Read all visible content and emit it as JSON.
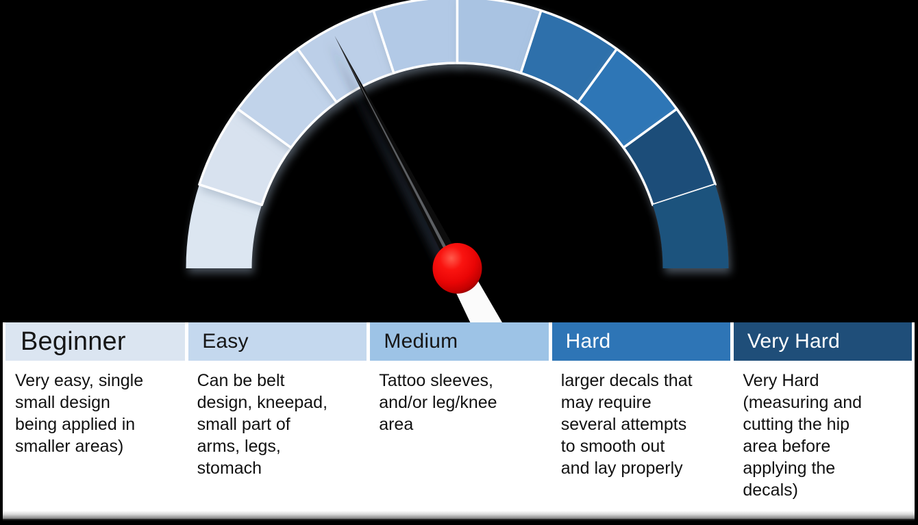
{
  "background_color": "#000000",
  "chart_data": [
    {
      "type": "gauge",
      "title": "",
      "arc_span_deg": 180,
      "levels": [
        "Beginner",
        "Easy",
        "Medium",
        "Hard",
        "Very Hard"
      ],
      "segments_per_level": 2,
      "segment_colors": [
        "#dce6f1",
        "#d8e2ef",
        "#c1d3ea",
        "#bccfe8",
        "#b2c9e6",
        "#a9c3e2",
        "#2d6fab",
        "#2e76b6",
        "#1f4e79",
        "#1e527d"
      ],
      "separator_color": "#ffffff",
      "needle_angle_deg": 117.8,
      "needle_points_to_level": "Easy",
      "needle_color": "#101010",
      "needle_tail_color": "#fbfbfb",
      "hub_color": "#f40404"
    },
    {
      "type": "table",
      "columns": [
        {
          "header": "Beginner",
          "header_bg": "#dbe5f1",
          "header_text_color": "#161616",
          "body": "Very easy, single\nsmall design\nbeing applied in\nsmaller areas)"
        },
        {
          "header": "Easy",
          "header_bg": "#c4d8ee",
          "header_text_color": "#161616",
          "body": "Can be belt\ndesign, kneepad,\nsmall part of\narms, legs,\nstomach"
        },
        {
          "header": "Medium",
          "header_bg": "#9dc3e6",
          "header_text_color": "#161616",
          "body": "Tattoo sleeves,\nand/or leg/knee\narea"
        },
        {
          "header": "Hard",
          "header_bg": "#2e75b6",
          "header_text_color": "#ffffff",
          "body": "larger decals that\nmay require\nseveral attempts\nto smooth out\nand lay properly"
        },
        {
          "header": "Very Hard",
          "header_bg": "#1f4e79",
          "header_text_color": "#ffffff",
          "body": "Very Hard\n(measuring and\ncutting the hip\narea before\napplying the\ndecals)"
        }
      ]
    }
  ]
}
